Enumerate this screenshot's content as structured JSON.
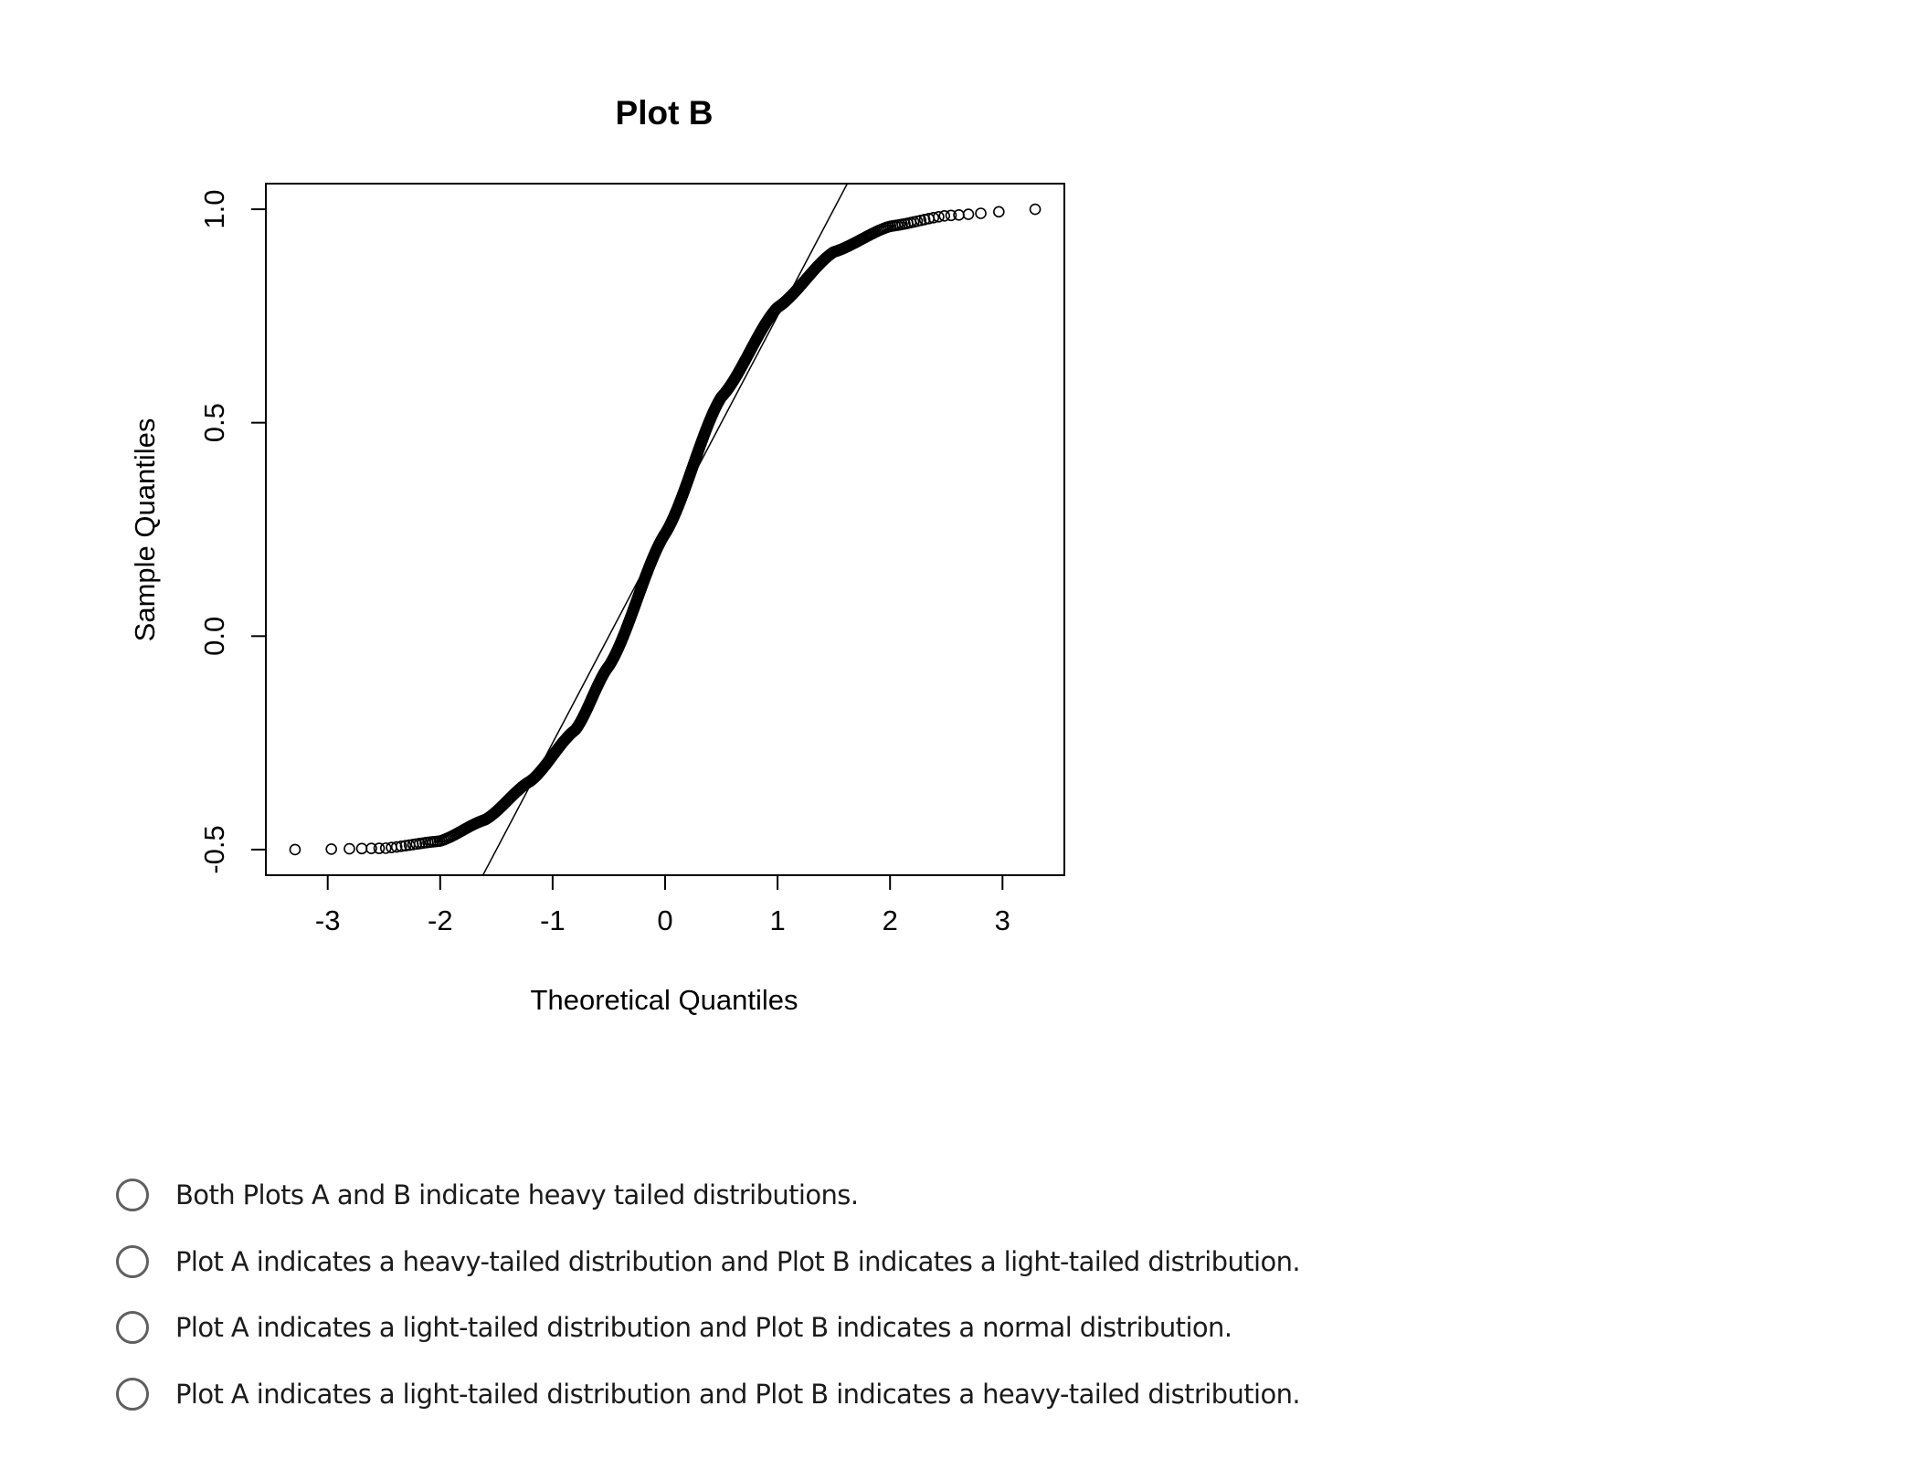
{
  "chart_data": {
    "type": "scatter",
    "subtype": "normal Q-Q plot",
    "title": "Plot B",
    "xlabel": "Theoretical Quantiles",
    "ylabel": "Sample Quantiles",
    "xlim": [
      -3.55,
      3.55
    ],
    "ylim": [
      -0.56,
      1.06
    ],
    "x_ticks": [
      {
        "value": -3,
        "label": "-3"
      },
      {
        "value": -2,
        "label": "-2"
      },
      {
        "value": -1,
        "label": "-1"
      },
      {
        "value": 0,
        "label": "0"
      },
      {
        "value": 1,
        "label": "1"
      },
      {
        "value": 2,
        "label": "2"
      },
      {
        "value": 3,
        "label": "3"
      }
    ],
    "y_ticks": [
      {
        "value": -0.5,
        "label": "-0.5"
      },
      {
        "value": 0.0,
        "label": "0.0"
      },
      {
        "value": 0.5,
        "label": "0.5"
      },
      {
        "value": 1.0,
        "label": "1.0"
      }
    ],
    "grid": false,
    "legend": "none",
    "marker": "open-circle",
    "n_points": 1000,
    "sample_range": [
      -0.5,
      1.0
    ],
    "reference_line": {
      "intercept": 0.25,
      "slope": 0.5
    },
    "curve_knots": [
      {
        "x": -3.3,
        "y": -0.5
      },
      {
        "x": -2.5,
        "y": -0.497
      },
      {
        "x": -2.0,
        "y": -0.48
      },
      {
        "x": -1.6,
        "y": -0.43
      },
      {
        "x": -1.2,
        "y": -0.34
      },
      {
        "x": -0.8,
        "y": -0.22
      },
      {
        "x": -0.5,
        "y": -0.07
      },
      {
        "x": 0.0,
        "y": 0.24
      },
      {
        "x": 0.5,
        "y": 0.56
      },
      {
        "x": 1.0,
        "y": 0.77
      },
      {
        "x": 1.5,
        "y": 0.9
      },
      {
        "x": 2.0,
        "y": 0.96
      },
      {
        "x": 2.5,
        "y": 0.985
      },
      {
        "x": 3.3,
        "y": 1.0
      }
    ],
    "color": "#000000"
  },
  "question": {
    "options": [
      {
        "label": "Both Plots A and B indicate heavy tailed distributions."
      },
      {
        "label": "Plot A indicates a heavy-tailed distribution and Plot B indicates a light-tailed distribution."
      },
      {
        "label": "Plot A indicates a light-tailed distribution and Plot B indicates a normal distribution."
      },
      {
        "label": "Plot A indicates a light-tailed distribution and Plot B indicates a heavy-tailed distribution."
      }
    ]
  },
  "colors": {
    "radio_border": "#5f5f5f",
    "option_text": "#1b1b1b"
  }
}
